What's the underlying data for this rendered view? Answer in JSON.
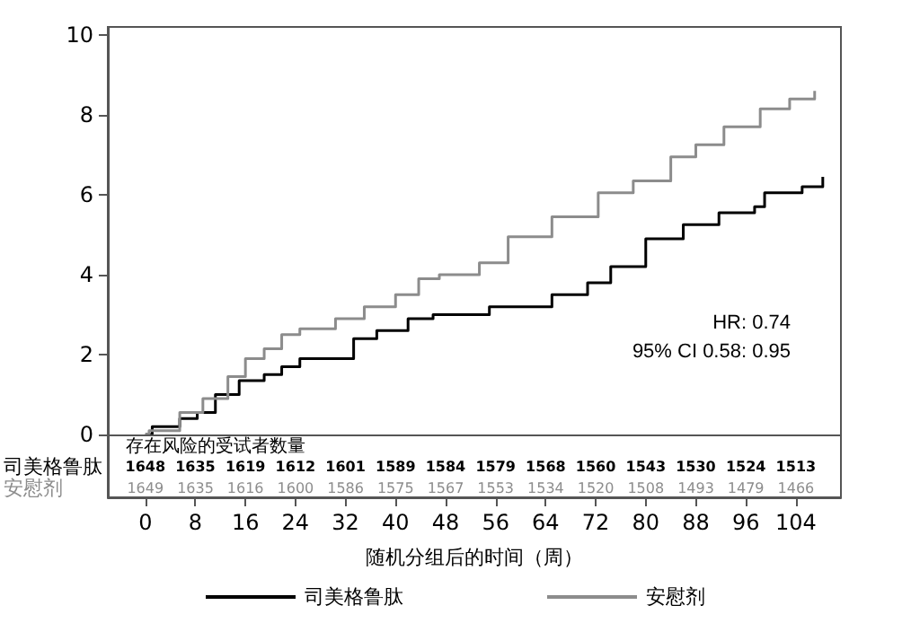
{
  "chart_data": {
    "type": "step",
    "xlabel": "随机分组后的时间（周）",
    "xlim": [
      -6,
      111.2
    ],
    "xticks": [
      0,
      8,
      16,
      24,
      32,
      40,
      48,
      56,
      64,
      72,
      80,
      88,
      96,
      104
    ],
    "ylim": [
      -1.57,
      10.2
    ],
    "yticks": [
      0,
      2,
      4,
      6,
      8,
      10
    ],
    "grid": false,
    "legend": "bottom",
    "marker": "none",
    "line_style": "solid",
    "ref_lines": [
      {
        "axis": "y",
        "value": 0,
        "color": "#555555"
      }
    ],
    "series": [
      {
        "name": "司美格鲁肽",
        "color": "#000000",
        "x": [
          0,
          1.1,
          5.5,
          8.3,
          11.2,
          15,
          19,
          21.8,
          24.7,
          29.4,
          33.3,
          37,
          42,
          46,
          55,
          65,
          70.7,
          74.4,
          80,
          86,
          91.7,
          97.4,
          99,
          105,
          108.3
        ],
        "values": [
          0,
          0.2,
          0.4,
          0.55,
          1.0,
          1.35,
          1.5,
          1.7,
          1.9,
          1.9,
          2.4,
          2.6,
          2.9,
          3.0,
          3.2,
          3.5,
          3.8,
          4.2,
          4.9,
          5.25,
          5.55,
          5.7,
          6.05,
          6.2,
          6.45
        ]
      },
      {
        "name": "安慰剂",
        "color": "#8c8c8c",
        "x": [
          0,
          0.6,
          5.5,
          9.2,
          13.2,
          16,
          19,
          21.8,
          24.7,
          29,
          30.4,
          35,
          40,
          43.7,
          47,
          53.4,
          58,
          65,
          72.4,
          78,
          84,
          88,
          92.5,
          98.3,
          103,
          107
        ],
        "values": [
          0,
          0.1,
          0.55,
          0.9,
          1.45,
          1.9,
          2.15,
          2.5,
          2.65,
          2.65,
          2.9,
          3.2,
          3.5,
          3.9,
          4.0,
          4.3,
          4.95,
          5.45,
          6.05,
          6.35,
          6.95,
          7.25,
          7.7,
          8.15,
          8.4,
          8.6
        ]
      }
    ],
    "annotations": [
      "HR: 0.74",
      "95% CI 0.58: 0.95",
      "存在风险的受试者数量",
      "1648",
      "1635",
      "1619",
      "1612",
      "1601",
      "1589",
      "1584",
      "1579",
      "1568",
      "1560",
      "1543",
      "1530",
      "1524",
      "1513",
      "1649",
      "1635",
      "1616",
      "1600",
      "1586",
      "1575",
      "1567",
      "1553",
      "1534",
      "1520",
      "1508",
      "1493",
      "1479",
      "1466"
    ]
  }
}
